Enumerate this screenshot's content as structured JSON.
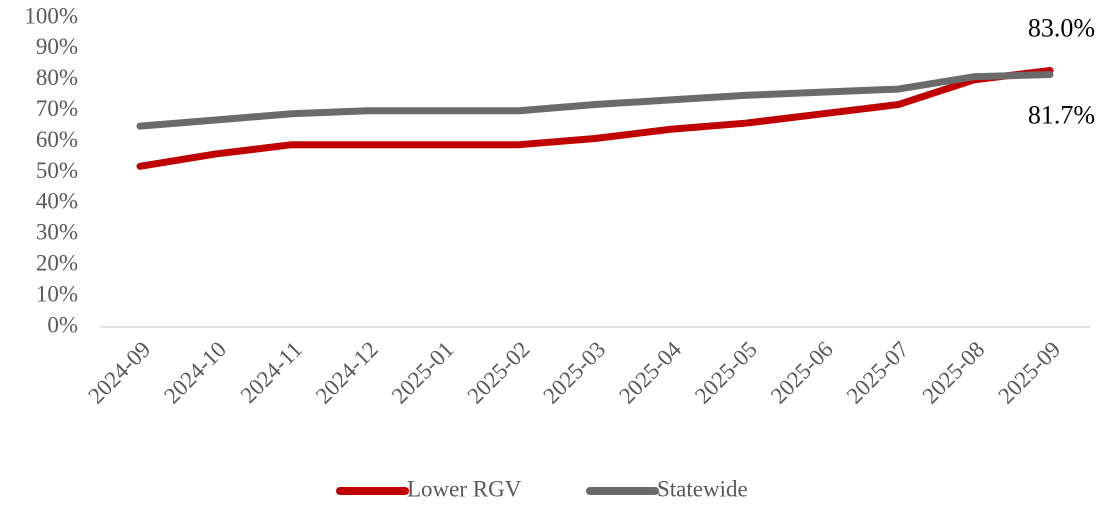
{
  "chart_data": {
    "type": "line",
    "categories": [
      "2024-09",
      "2024-10",
      "2024-11",
      "2024-12",
      "2025-01",
      "2025-02",
      "2025-03",
      "2025-04",
      "2025-05",
      "2025-06",
      "2025-07",
      "2025-08",
      "2025-09"
    ],
    "series": [
      {
        "name": "Lower RGV",
        "color": "#c00000",
        "values": [
          52,
          56,
          59,
          59,
          59,
          59,
          61,
          64,
          66,
          69,
          72,
          80,
          83.0
        ],
        "value_labels": [
          null,
          null,
          null,
          null,
          null,
          null,
          null,
          null,
          null,
          null,
          null,
          null,
          "83.0%"
        ]
      },
      {
        "name": "Statewide",
        "color": "#6b6b6b",
        "values": [
          65,
          67,
          69,
          70,
          70,
          70,
          72,
          73.5,
          75,
          76,
          77,
          81,
          81.7
        ],
        "value_labels": [
          null,
          null,
          null,
          null,
          null,
          null,
          null,
          null,
          null,
          null,
          null,
          null,
          "81.7%"
        ]
      }
    ],
    "ylim": [
      0,
      100
    ],
    "yticks": [
      {
        "value": 0,
        "label": "0%"
      },
      {
        "value": 10,
        "label": "10%"
      },
      {
        "value": 20,
        "label": "20%"
      },
      {
        "value": 30,
        "label": "30%"
      },
      {
        "value": 40,
        "label": "40%"
      },
      {
        "value": 50,
        "label": "50%"
      },
      {
        "value": 60,
        "label": "60%"
      },
      {
        "value": 70,
        "label": "70%"
      },
      {
        "value": 80,
        "label": "80%"
      },
      {
        "value": 90,
        "label": "90%"
      },
      {
        "value": 100,
        "label": "100%"
      }
    ],
    "grid": false,
    "legend": "bottom"
  }
}
